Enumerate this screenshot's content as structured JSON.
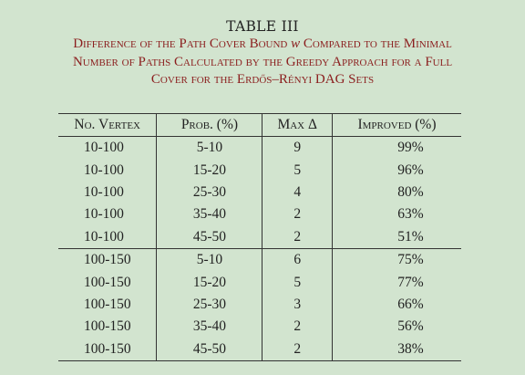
{
  "caption": {
    "label": "TABLE III",
    "lines": [
      [
        "Difference of the Path Cover Bound ",
        "w",
        " Compared to the Minimal"
      ],
      [
        "Number of Paths Calculated by the Greedy Approach for a Full"
      ],
      [
        "Cover for the Erdős–Rényi DAG Sets"
      ]
    ]
  },
  "table": {
    "headers": [
      "No. Vertex",
      "Prob. (%)",
      "Max Δ",
      "Improved (%)"
    ],
    "groups": [
      [
        [
          "10-100",
          "5-10",
          "9",
          "99%"
        ],
        [
          "10-100",
          "15-20",
          "5",
          "96%"
        ],
        [
          "10-100",
          "25-30",
          "4",
          "80%"
        ],
        [
          "10-100",
          "35-40",
          "2",
          "63%"
        ],
        [
          "10-100",
          "45-50",
          "2",
          "51%"
        ]
      ],
      [
        [
          "100-150",
          "5-10",
          "6",
          "75%"
        ],
        [
          "100-150",
          "15-20",
          "5",
          "77%"
        ],
        [
          "100-150",
          "25-30",
          "3",
          "66%"
        ],
        [
          "100-150",
          "35-40",
          "2",
          "56%"
        ],
        [
          "100-150",
          "45-50",
          "2",
          "38%"
        ]
      ]
    ]
  },
  "colors": {
    "background": "#d2e4cf",
    "title": "#8b1e1e",
    "text": "#222222"
  }
}
